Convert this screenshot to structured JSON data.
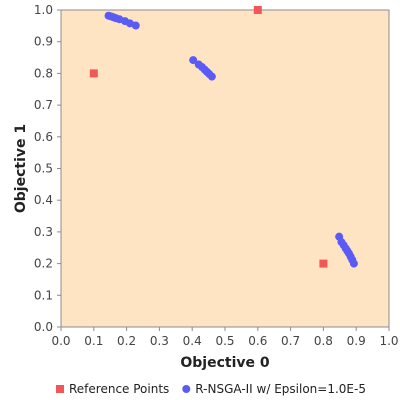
{
  "chart_data": {
    "type": "scatter",
    "title": "",
    "xlabel": "Objective 0",
    "ylabel": "Objective 1",
    "xlim": [
      0.0,
      1.0
    ],
    "ylim": [
      0.0,
      1.0
    ],
    "x_ticks": [
      "0.0",
      "0.1",
      "0.2",
      "0.3",
      "0.4",
      "0.5",
      "0.6",
      "0.7",
      "0.8",
      "0.9",
      "1.0"
    ],
    "y_ticks": [
      "0.0",
      "0.1",
      "0.2",
      "0.3",
      "0.4",
      "0.5",
      "0.6",
      "0.7",
      "0.8",
      "0.9",
      "1.0"
    ],
    "grid": false,
    "legend": "bottom",
    "plot_background": "#FFE4C4",
    "series": [
      {
        "name": "Reference Points",
        "marker": "square",
        "color": "#F25757",
        "points": [
          {
            "x": 0.1,
            "y": 0.8
          },
          {
            "x": 0.6,
            "y": 1.0
          },
          {
            "x": 0.8,
            "y": 0.2
          }
        ]
      },
      {
        "name": "R-NSGA-II w/ Epsilon=1.0E-5",
        "marker": "circle",
        "color": "#5A5AF5",
        "points": [
          {
            "x": 0.145,
            "y": 0.982
          },
          {
            "x": 0.152,
            "y": 0.98
          },
          {
            "x": 0.16,
            "y": 0.977
          },
          {
            "x": 0.168,
            "y": 0.974
          },
          {
            "x": 0.178,
            "y": 0.971
          },
          {
            "x": 0.195,
            "y": 0.965
          },
          {
            "x": 0.21,
            "y": 0.958
          },
          {
            "x": 0.228,
            "y": 0.951
          },
          {
            "x": 0.403,
            "y": 0.842
          },
          {
            "x": 0.42,
            "y": 0.828
          },
          {
            "x": 0.43,
            "y": 0.82
          },
          {
            "x": 0.438,
            "y": 0.812
          },
          {
            "x": 0.445,
            "y": 0.805
          },
          {
            "x": 0.452,
            "y": 0.798
          },
          {
            "x": 0.46,
            "y": 0.79
          },
          {
            "x": 0.848,
            "y": 0.285
          },
          {
            "x": 0.855,
            "y": 0.268
          },
          {
            "x": 0.862,
            "y": 0.258
          },
          {
            "x": 0.868,
            "y": 0.248
          },
          {
            "x": 0.873,
            "y": 0.24
          },
          {
            "x": 0.878,
            "y": 0.232
          },
          {
            "x": 0.883,
            "y": 0.222
          },
          {
            "x": 0.888,
            "y": 0.212
          },
          {
            "x": 0.893,
            "y": 0.2
          }
        ]
      }
    ]
  }
}
